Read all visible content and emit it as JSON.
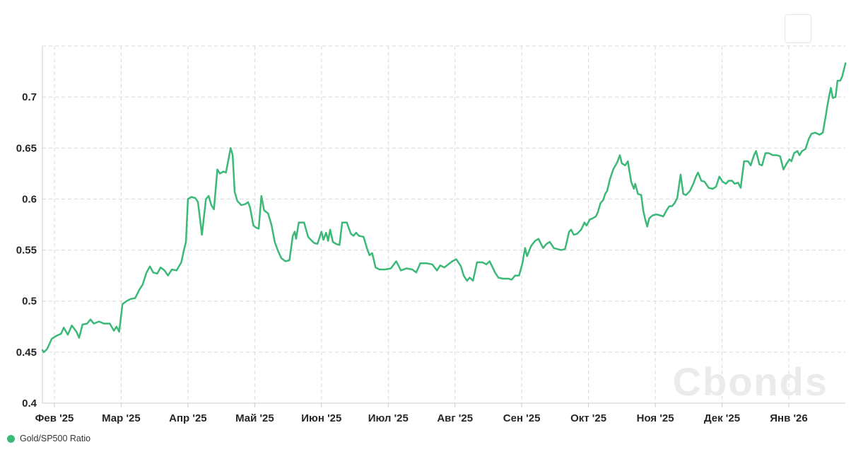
{
  "watermark_text": "Cbonds",
  "legend": {
    "label": "Gold/SP500 Ratio",
    "dot_color": "#3cb878"
  },
  "colors": {
    "line": "#3cb878",
    "grid": "#d9d9d9",
    "axis": "#cccccc",
    "labels": "#262626",
    "watermark": "#ebebeb"
  },
  "chart_data": {
    "type": "line",
    "title": "",
    "xlabel": "",
    "ylabel": "",
    "grid": "dashed",
    "legend_position": "bottom-left",
    "x_axis": {
      "unit": "months since Feb 2025 (decimal)",
      "tick_positions": [
        0,
        1,
        2,
        3,
        4,
        5,
        6,
        7,
        8,
        9,
        10,
        11
      ],
      "tick_labels": [
        "Фев '25",
        "Мар '25",
        "Апр '25",
        "Май '25",
        "Июн '25",
        "Июл '25",
        "Авг '25",
        "Сен '25",
        "Окт '25",
        "Ноя '25",
        "Дек '25",
        "Янв '26"
      ],
      "range": [
        -0.18,
        11.85
      ]
    },
    "y_axis": {
      "range": [
        0.4,
        0.75
      ],
      "tick_values": [
        0.4,
        0.45,
        0.5,
        0.55,
        0.6,
        0.65,
        0.7
      ],
      "tick_labels": [
        "0.4",
        "0.45",
        "0.5",
        "0.55",
        "0.6",
        "0.65",
        "0.7"
      ],
      "gridline_values": [
        0.45,
        0.5,
        0.55,
        0.6,
        0.65,
        0.7,
        0.75
      ]
    },
    "series": [
      {
        "name": "Gold/SP500 Ratio",
        "color": "#3cb878",
        "points": [
          [
            -0.18,
            0.452
          ],
          [
            -0.16,
            0.45
          ],
          [
            -0.11,
            0.453
          ],
          [
            -0.04,
            0.463
          ],
          [
            0.03,
            0.466
          ],
          [
            0.1,
            0.468
          ],
          [
            0.14,
            0.474
          ],
          [
            0.2,
            0.467
          ],
          [
            0.26,
            0.476
          ],
          [
            0.33,
            0.47
          ],
          [
            0.37,
            0.464
          ],
          [
            0.42,
            0.477
          ],
          [
            0.49,
            0.478
          ],
          [
            0.54,
            0.482
          ],
          [
            0.59,
            0.478
          ],
          [
            0.67,
            0.48
          ],
          [
            0.74,
            0.478
          ],
          [
            0.83,
            0.478
          ],
          [
            0.89,
            0.471
          ],
          [
            0.93,
            0.475
          ],
          [
            0.97,
            0.47
          ],
          [
            1.02,
            0.497
          ],
          [
            1.08,
            0.5
          ],
          [
            1.14,
            0.502
          ],
          [
            1.21,
            0.503
          ],
          [
            1.27,
            0.511
          ],
          [
            1.32,
            0.516
          ],
          [
            1.38,
            0.528
          ],
          [
            1.43,
            0.534
          ],
          [
            1.48,
            0.528
          ],
          [
            1.54,
            0.527
          ],
          [
            1.59,
            0.533
          ],
          [
            1.65,
            0.53
          ],
          [
            1.7,
            0.525
          ],
          [
            1.76,
            0.531
          ],
          [
            1.83,
            0.53
          ],
          [
            1.9,
            0.538
          ],
          [
            1.94,
            0.55
          ],
          [
            1.97,
            0.558
          ],
          [
            2.0,
            0.6
          ],
          [
            2.05,
            0.602
          ],
          [
            2.11,
            0.601
          ],
          [
            2.15,
            0.597
          ],
          [
            2.21,
            0.565
          ],
          [
            2.27,
            0.6
          ],
          [
            2.31,
            0.603
          ],
          [
            2.35,
            0.594
          ],
          [
            2.39,
            0.59
          ],
          [
            2.44,
            0.629
          ],
          [
            2.48,
            0.625
          ],
          [
            2.53,
            0.627
          ],
          [
            2.57,
            0.626
          ],
          [
            2.64,
            0.65
          ],
          [
            2.67,
            0.643
          ],
          [
            2.7,
            0.607
          ],
          [
            2.74,
            0.598
          ],
          [
            2.8,
            0.594
          ],
          [
            2.86,
            0.595
          ],
          [
            2.9,
            0.597
          ],
          [
            2.93,
            0.592
          ],
          [
            2.98,
            0.574
          ],
          [
            3.02,
            0.572
          ],
          [
            3.06,
            0.571
          ],
          [
            3.1,
            0.603
          ],
          [
            3.14,
            0.589
          ],
          [
            3.2,
            0.586
          ],
          [
            3.25,
            0.575
          ],
          [
            3.3,
            0.558
          ],
          [
            3.35,
            0.549
          ],
          [
            3.4,
            0.542
          ],
          [
            3.46,
            0.539
          ],
          [
            3.52,
            0.54
          ],
          [
            3.57,
            0.564
          ],
          [
            3.6,
            0.568
          ],
          [
            3.62,
            0.561
          ],
          [
            3.66,
            0.577
          ],
          [
            3.74,
            0.577
          ],
          [
            3.8,
            0.563
          ],
          [
            3.84,
            0.56
          ],
          [
            3.89,
            0.557
          ],
          [
            3.94,
            0.556
          ],
          [
            4.0,
            0.568
          ],
          [
            4.03,
            0.56
          ],
          [
            4.07,
            0.567
          ],
          [
            4.1,
            0.559
          ],
          [
            4.13,
            0.57
          ],
          [
            4.17,
            0.558
          ],
          [
            4.22,
            0.556
          ],
          [
            4.27,
            0.555
          ],
          [
            4.31,
            0.577
          ],
          [
            4.38,
            0.577
          ],
          [
            4.44,
            0.566
          ],
          [
            4.48,
            0.564
          ],
          [
            4.52,
            0.567
          ],
          [
            4.56,
            0.564
          ],
          [
            4.63,
            0.563
          ],
          [
            4.69,
            0.55
          ],
          [
            4.72,
            0.545
          ],
          [
            4.76,
            0.547
          ],
          [
            4.81,
            0.533
          ],
          [
            4.87,
            0.531
          ],
          [
            4.95,
            0.531
          ],
          [
            5.04,
            0.532
          ],
          [
            5.12,
            0.539
          ],
          [
            5.19,
            0.53
          ],
          [
            5.27,
            0.532
          ],
          [
            5.36,
            0.531
          ],
          [
            5.42,
            0.528
          ],
          [
            5.48,
            0.537
          ],
          [
            5.58,
            0.537
          ],
          [
            5.66,
            0.536
          ],
          [
            5.73,
            0.53
          ],
          [
            5.78,
            0.535
          ],
          [
            5.84,
            0.533
          ],
          [
            5.9,
            0.536
          ],
          [
            5.96,
            0.539
          ],
          [
            6.02,
            0.541
          ],
          [
            6.09,
            0.534
          ],
          [
            6.13,
            0.525
          ],
          [
            6.18,
            0.52
          ],
          [
            6.22,
            0.523
          ],
          [
            6.27,
            0.52
          ],
          [
            6.33,
            0.538
          ],
          [
            6.41,
            0.538
          ],
          [
            6.47,
            0.536
          ],
          [
            6.52,
            0.539
          ],
          [
            6.6,
            0.528
          ],
          [
            6.65,
            0.523
          ],
          [
            6.72,
            0.522
          ],
          [
            6.8,
            0.522
          ],
          [
            6.85,
            0.521
          ],
          [
            6.9,
            0.525
          ],
          [
            6.96,
            0.525
          ],
          [
            7.01,
            0.537
          ],
          [
            7.05,
            0.552
          ],
          [
            7.08,
            0.544
          ],
          [
            7.14,
            0.554
          ],
          [
            7.2,
            0.559
          ],
          [
            7.25,
            0.561
          ],
          [
            7.32,
            0.552
          ],
          [
            7.37,
            0.556
          ],
          [
            7.42,
            0.558
          ],
          [
            7.48,
            0.552
          ],
          [
            7.53,
            0.551
          ],
          [
            7.59,
            0.55
          ],
          [
            7.65,
            0.551
          ],
          [
            7.71,
            0.568
          ],
          [
            7.74,
            0.57
          ],
          [
            7.78,
            0.565
          ],
          [
            7.83,
            0.566
          ],
          [
            7.89,
            0.57
          ],
          [
            7.94,
            0.577
          ],
          [
            7.97,
            0.574
          ],
          [
            8.02,
            0.58
          ],
          [
            8.06,
            0.581
          ],
          [
            8.11,
            0.583
          ],
          [
            8.14,
            0.587
          ],
          [
            8.18,
            0.596
          ],
          [
            8.22,
            0.599
          ],
          [
            8.25,
            0.605
          ],
          [
            8.28,
            0.608
          ],
          [
            8.32,
            0.619
          ],
          [
            8.37,
            0.629
          ],
          [
            8.43,
            0.636
          ],
          [
            8.47,
            0.643
          ],
          [
            8.5,
            0.635
          ],
          [
            8.55,
            0.633
          ],
          [
            8.59,
            0.637
          ],
          [
            8.64,
            0.617
          ],
          [
            8.68,
            0.61
          ],
          [
            8.7,
            0.615
          ],
          [
            8.74,
            0.605
          ],
          [
            8.79,
            0.604
          ],
          [
            8.82,
            0.589
          ],
          [
            8.85,
            0.58
          ],
          [
            8.88,
            0.573
          ],
          [
            8.91,
            0.581
          ],
          [
            8.96,
            0.584
          ],
          [
            9.02,
            0.585
          ],
          [
            9.07,
            0.584
          ],
          [
            9.12,
            0.583
          ],
          [
            9.17,
            0.589
          ],
          [
            9.21,
            0.593
          ],
          [
            9.25,
            0.593
          ],
          [
            9.29,
            0.596
          ],
          [
            9.33,
            0.601
          ],
          [
            9.38,
            0.624
          ],
          [
            9.42,
            0.605
          ],
          [
            9.46,
            0.604
          ],
          [
            9.52,
            0.608
          ],
          [
            9.57,
            0.615
          ],
          [
            9.61,
            0.622
          ],
          [
            9.64,
            0.626
          ],
          [
            9.69,
            0.618
          ],
          [
            9.74,
            0.617
          ],
          [
            9.8,
            0.611
          ],
          [
            9.86,
            0.61
          ],
          [
            9.91,
            0.612
          ],
          [
            9.96,
            0.622
          ],
          [
            10.01,
            0.617
          ],
          [
            10.06,
            0.615
          ],
          [
            10.1,
            0.618
          ],
          [
            10.15,
            0.618
          ],
          [
            10.19,
            0.615
          ],
          [
            10.24,
            0.616
          ],
          [
            10.28,
            0.611
          ],
          [
            10.33,
            0.637
          ],
          [
            10.39,
            0.637
          ],
          [
            10.43,
            0.633
          ],
          [
            10.48,
            0.643
          ],
          [
            10.51,
            0.647
          ],
          [
            10.56,
            0.634
          ],
          [
            10.6,
            0.633
          ],
          [
            10.65,
            0.645
          ],
          [
            10.7,
            0.645
          ],
          [
            10.76,
            0.643
          ],
          [
            10.82,
            0.643
          ],
          [
            10.87,
            0.642
          ],
          [
            10.92,
            0.629
          ],
          [
            10.97,
            0.635
          ],
          [
            11.01,
            0.639
          ],
          [
            11.04,
            0.637
          ],
          [
            11.08,
            0.645
          ],
          [
            11.13,
            0.647
          ],
          [
            11.16,
            0.643
          ],
          [
            11.2,
            0.647
          ],
          [
            11.25,
            0.649
          ],
          [
            11.3,
            0.659
          ],
          [
            11.34,
            0.664
          ],
          [
            11.4,
            0.665
          ],
          [
            11.46,
            0.663
          ],
          [
            11.51,
            0.665
          ],
          [
            11.55,
            0.68
          ],
          [
            11.59,
            0.696
          ],
          [
            11.63,
            0.709
          ],
          [
            11.66,
            0.699
          ],
          [
            11.7,
            0.7
          ],
          [
            11.73,
            0.716
          ],
          [
            11.77,
            0.716
          ],
          [
            11.8,
            0.72
          ],
          [
            11.85,
            0.733
          ]
        ]
      }
    ]
  }
}
